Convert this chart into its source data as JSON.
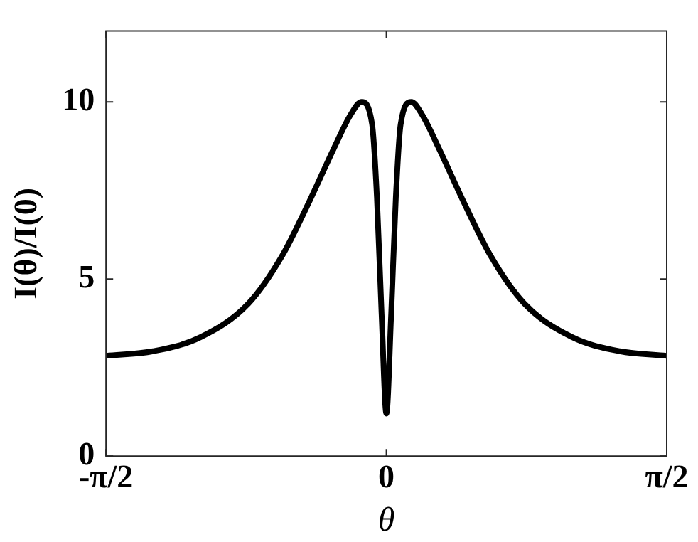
{
  "chart_data": {
    "type": "line",
    "xlabel": "θ",
    "ylabel": "I(θ)/I(0)",
    "x": [
      -1.5708,
      -1.307,
      -1.04,
      -0.774,
      -0.587,
      -0.427,
      -0.293,
      -0.2,
      -0.139,
      -0.08,
      -0.053,
      -0.027,
      0,
      0.027,
      0.053,
      0.08,
      0.139,
      0.2,
      0.293,
      0.427,
      0.587,
      0.774,
      1.04,
      1.307,
      1.5708
    ],
    "series": [
      {
        "color": "#000000",
        "values": [
          2.83,
          2.96,
          3.36,
          4.3,
          5.63,
          7.24,
          8.7,
          9.64,
          10,
          9.37,
          7.3,
          4.03,
          1.2,
          4.03,
          7.3,
          9.37,
          10,
          9.64,
          8.7,
          7.24,
          5.63,
          4.3,
          3.36,
          2.96,
          2.83
        ]
      }
    ],
    "xlim": [
      -1.5708,
      1.5708
    ],
    "xticks": [
      {
        "value": -1.5708,
        "label": "-π/2"
      },
      0,
      {
        "value": 1.5708,
        "label": "π/2"
      }
    ],
    "ylim": [
      0,
      12
    ],
    "yticks": [
      0,
      5,
      10
    ],
    "grid": false,
    "legend": false,
    "marker": "none",
    "line_style": "solid"
  }
}
